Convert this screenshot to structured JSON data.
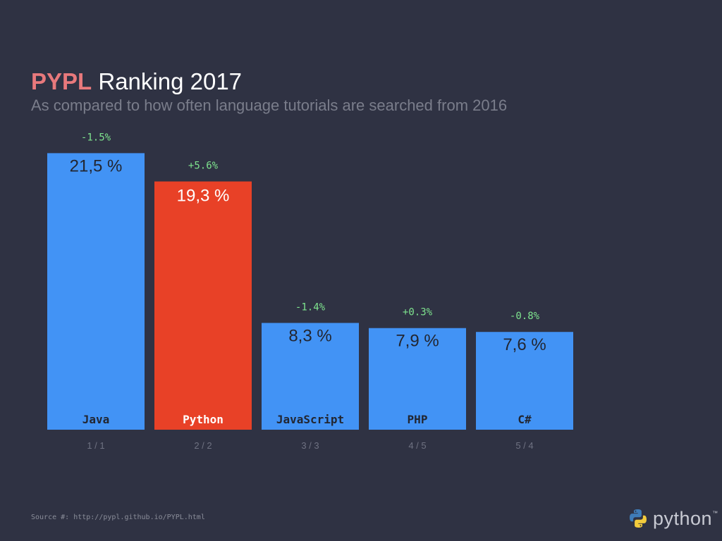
{
  "header": {
    "title_accent": "PYPL",
    "title_rest": "Ranking 2017",
    "subtitle": "As compared to how often language tutorials are searched from 2016"
  },
  "chart_data": {
    "type": "bar",
    "categories": [
      "Java",
      "Python",
      "JavaScript",
      "PHP",
      "C#"
    ],
    "values": [
      21.5,
      19.3,
      8.3,
      7.9,
      7.6
    ],
    "value_labels": [
      "21,5 %",
      "19,3 %",
      "8,3 %",
      "7,9 %",
      "7,6 %"
    ],
    "changes": [
      "-1.5%",
      "+5.6%",
      "-1.4%",
      "+0.3%",
      "-0.8%"
    ],
    "ranks": [
      "1 / 1",
      "2 / 2",
      "3 / 3",
      "4 / 5",
      "5 / 4"
    ],
    "highlight": "Python",
    "colors": {
      "bar": "#4293f5",
      "highlight_bar": "#e84127",
      "change": "#7ee38e",
      "bar_text": "#222631",
      "highlight_text": "#ffffff"
    }
  },
  "footer": {
    "source": "Source #: http://pypl.github.io/PYPL.html",
    "logo_text": "python",
    "logo_tm": "™",
    "logo_icon": "python-logo-icon"
  }
}
